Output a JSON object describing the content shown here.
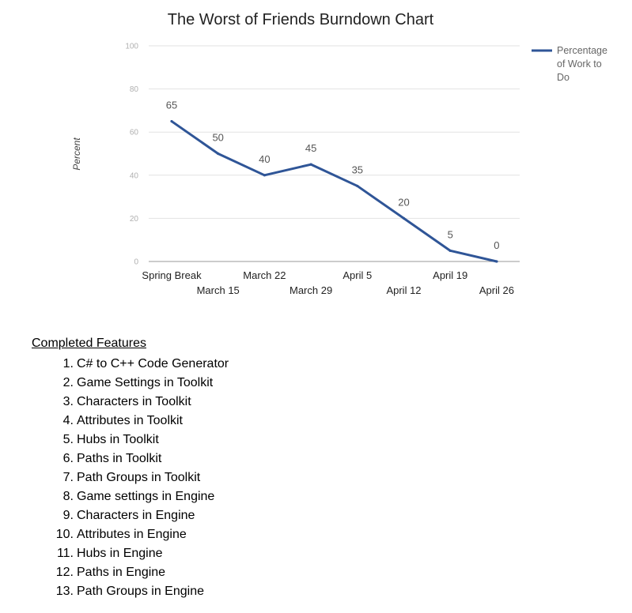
{
  "chart_data": {
    "type": "line",
    "title": "The Worst of Friends Burndown Chart",
    "xlabel": "",
    "ylabel": "Percent",
    "categories": [
      "Spring Break",
      "March 15",
      "March 22",
      "March 29",
      "April 5",
      "April 12",
      "April 19",
      "April 26"
    ],
    "series": [
      {
        "name": "Percentage of Work to Do",
        "values": [
          65,
          50,
          40,
          45,
          35,
          20,
          5,
          0
        ]
      }
    ],
    "data_labels": [
      "65",
      "50",
      "40",
      "45",
      "35",
      "20",
      "5",
      "0"
    ],
    "ylim": [
      0,
      100
    ],
    "yticks": [
      0,
      20,
      40,
      60,
      80,
      100
    ],
    "grid": true,
    "legend": "right",
    "legend_lines": [
      "Percentage",
      "of Work to",
      "Do"
    ],
    "colors": {
      "line": "#2f5597",
      "grid": "#e2e2e2",
      "tick_label": "#b0b0b0",
      "data_label": "#555555"
    }
  },
  "features": {
    "title": "Completed Features",
    "items": [
      {
        "num": "1.",
        "text": "C# to C++ Code Generator"
      },
      {
        "num": "2.",
        "text": "Game Settings in Toolkit"
      },
      {
        "num": "3.",
        "text": "Characters in Toolkit"
      },
      {
        "num": "4.",
        "text": "Attributes in Toolkit"
      },
      {
        "num": "5.",
        "text": "Hubs in Toolkit"
      },
      {
        "num": "6.",
        "text": "Paths in Toolkit"
      },
      {
        "num": "7.",
        "text": "Path Groups in Toolkit"
      },
      {
        "num": "8.",
        "text": "Game settings in Engine"
      },
      {
        "num": "9.",
        "text": "Characters in Engine"
      },
      {
        "num": "10.",
        "text": "Attributes in Engine"
      },
      {
        "num": "11.",
        "text": "Hubs in Engine"
      },
      {
        "num": "12.",
        "text": "Paths in Engine"
      },
      {
        "num": "13.",
        "text": "Path Groups in Engine"
      }
    ]
  }
}
